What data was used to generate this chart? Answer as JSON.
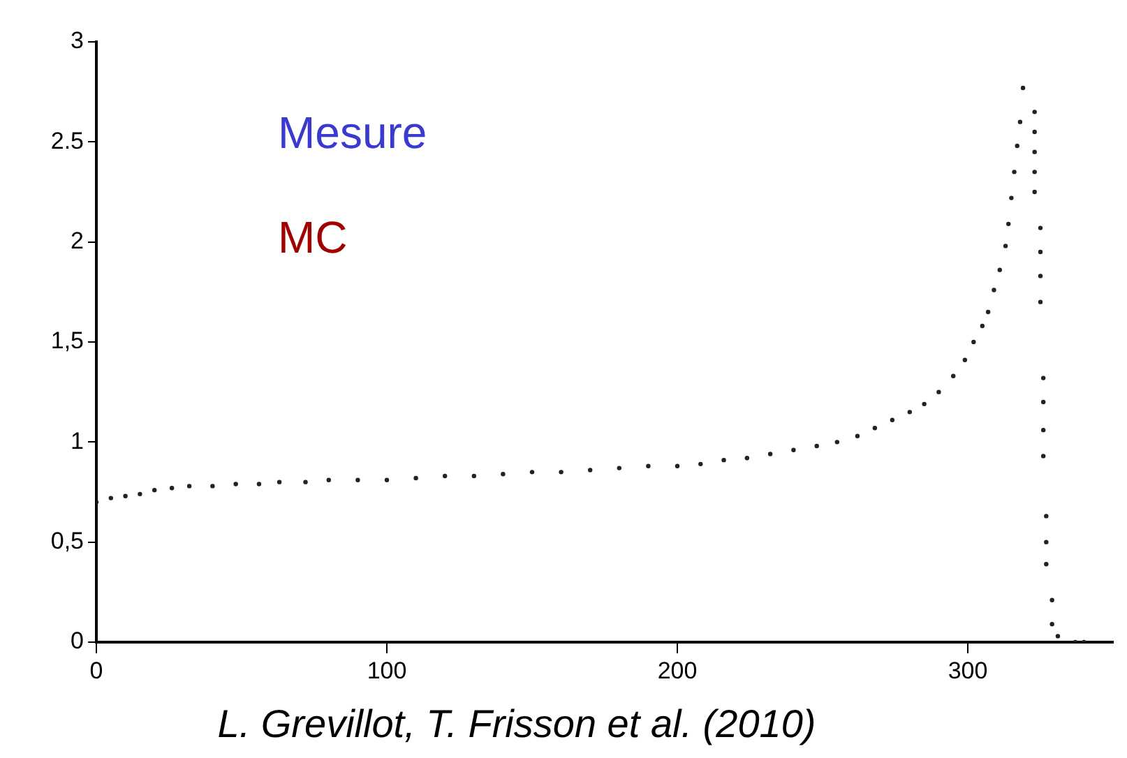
{
  "chart_data": {
    "type": "scatter",
    "marker": "circle",
    "xlim": [
      0,
      350
    ],
    "xticks": [
      0,
      100,
      200,
      300
    ],
    "ylim": [
      0,
      3
    ],
    "yticks": [
      0,
      {
        "value": 0.5,
        "label": "0,5"
      },
      1,
      {
        "value": 1.5,
        "label": "1,5"
      },
      2,
      2.5,
      3
    ],
    "annotations": [
      "Mesure",
      "MC",
      "L. Grevillot, T. Frisson et al. (2010)"
    ],
    "series": [
      {
        "color": "#222222",
        "x": [
          0,
          5,
          10,
          15,
          20,
          26,
          32,
          40,
          48,
          56,
          63,
          72,
          80,
          90,
          100,
          110,
          120,
          130,
          140,
          150,
          160,
          170,
          180,
          190,
          200,
          208,
          216,
          224,
          232,
          240,
          248,
          255,
          262,
          268,
          274,
          280,
          285,
          290,
          295,
          299,
          302,
          305,
          307,
          309,
          311,
          313,
          314,
          315,
          316,
          317,
          318,
          319,
          323,
          323,
          323,
          323,
          323,
          325,
          325,
          325,
          325,
          326,
          326,
          326,
          326,
          327,
          327,
          327,
          329,
          329,
          331,
          337,
          340
        ],
        "values": [
          0.7,
          0.72,
          0.73,
          0.74,
          0.76,
          0.77,
          0.78,
          0.78,
          0.79,
          0.79,
          0.8,
          0.8,
          0.81,
          0.81,
          0.81,
          0.82,
          0.83,
          0.83,
          0.84,
          0.85,
          0.85,
          0.86,
          0.87,
          0.88,
          0.88,
          0.89,
          0.91,
          0.92,
          0.94,
          0.96,
          0.98,
          1.0,
          1.03,
          1.07,
          1.11,
          1.15,
          1.19,
          1.25,
          1.33,
          1.41,
          1.5,
          1.58,
          1.65,
          1.76,
          1.86,
          1.98,
          2.09,
          2.22,
          2.35,
          2.48,
          2.6,
          2.77,
          2.65,
          2.55,
          2.45,
          2.35,
          2.25,
          2.07,
          1.95,
          1.83,
          1.7,
          1.32,
          1.2,
          1.06,
          0.93,
          0.63,
          0.5,
          0.39,
          0.21,
          0.09,
          0.03,
          0,
          0
        ]
      }
    ]
  }
}
